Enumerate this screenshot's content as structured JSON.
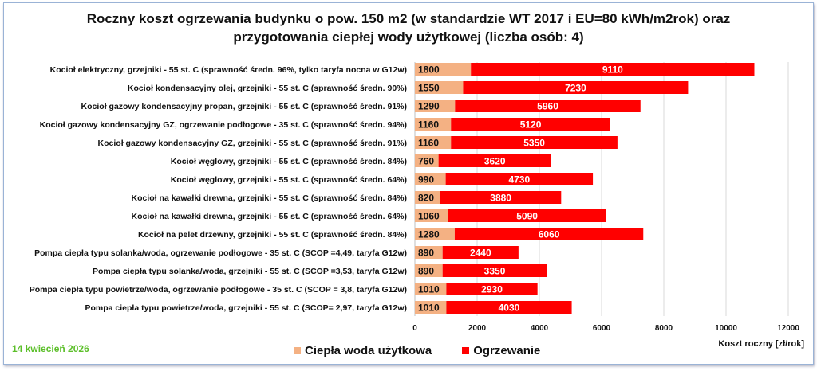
{
  "chart_data": {
    "type": "bar",
    "orientation": "horizontal",
    "stacked": true,
    "title": "Roczny koszt ogrzewania budynku o pow. 150 m2 (w standardzie WT 2017 i EU=80 kWh/m2rok) oraz przygotowania ciepłej wody użytkowej (liczba osób: 4)",
    "title_lines": [
      "Roczny koszt ogrzewania budynku o pow. 150 m2 (w standardzie WT 2017 i EU=80 kWh/m2rok) oraz",
      "przygotowania ciepłej wody użytkowej (liczba osób: 4)"
    ],
    "xlabel": "Koszt roczny [zł/rok]",
    "xlim": [
      0,
      12000
    ],
    "xticks": [
      0,
      2000,
      4000,
      6000,
      8000,
      10000,
      12000
    ],
    "grid": "vertical",
    "legend_position": "bottom",
    "categories": [
      "Kocioł  elektryczny,  grzejniki - 55 st. C  (sprawność średn. 96%, tylko taryfa nocna w G12w)",
      "Kocioł  kondensacyjny olej,  grzejniki - 55 st. C (sprawność średn. 90%)",
      "Kocioł gazowy kondensacyjny propan, grzejniki - 55 st. C (sprawność średn. 91%)",
      "Kocioł gazowy kondensacyjny GZ, ogrzewanie podłogowe - 35 st. C (sprawność średn. 94%)",
      "Kocioł gazowy kondensacyjny GZ, grzejniki - 55 st. C (sprawność średn. 91%)",
      "Kocioł węglowy,  grzejniki - 55 st. C (sprawność średn. 84%)",
      "Kocioł węglowy,  grzejniki - 55 st. C (sprawność średn. 64%)",
      "Kocioł na kawałki drewna, grzejniki - 55 st. C (sprawność średn. 84%)",
      "Kocioł na kawałki drewna, grzejniki - 55 st. C (sprawność średn. 64%)",
      "Kocioł na pelet drzewny, grzejniki - 55 st. C (sprawność średn. 84%)",
      "Pompa ciepła typu solanka/woda, ogrzewanie podłogowe - 35 st. C (SCOP =4,49, taryfa G12w)",
      "Pompa ciepła typu solanka/woda, grzejniki - 55 st. C (SCOP =3,53, taryfa G12w)",
      "Pompa ciepła typu powietrze/woda, ogrzewanie podłogowe - 35 st. C (SCOP = 3,8, taryfa G12w)",
      "Pompa ciepła typu powietrze/woda, grzejniki - 55 st. C (SCOP= 2,97, taryfa G12w)"
    ],
    "series": [
      {
        "name": "Ciepła woda użytkowa",
        "color": "#f4b183",
        "values": [
          1800,
          1550,
          1290,
          1160,
          1160,
          760,
          990,
          820,
          1060,
          1280,
          890,
          890,
          1010,
          1010
        ]
      },
      {
        "name": "Ogrzewanie",
        "color": "#ff0000",
        "values": [
          9110,
          7230,
          5960,
          5120,
          5350,
          3620,
          4730,
          3880,
          5090,
          6060,
          2440,
          3350,
          2930,
          4030
        ]
      }
    ]
  },
  "footer": {
    "date": "14 kwiecień 2026",
    "date_color": "#5cbf2a"
  }
}
